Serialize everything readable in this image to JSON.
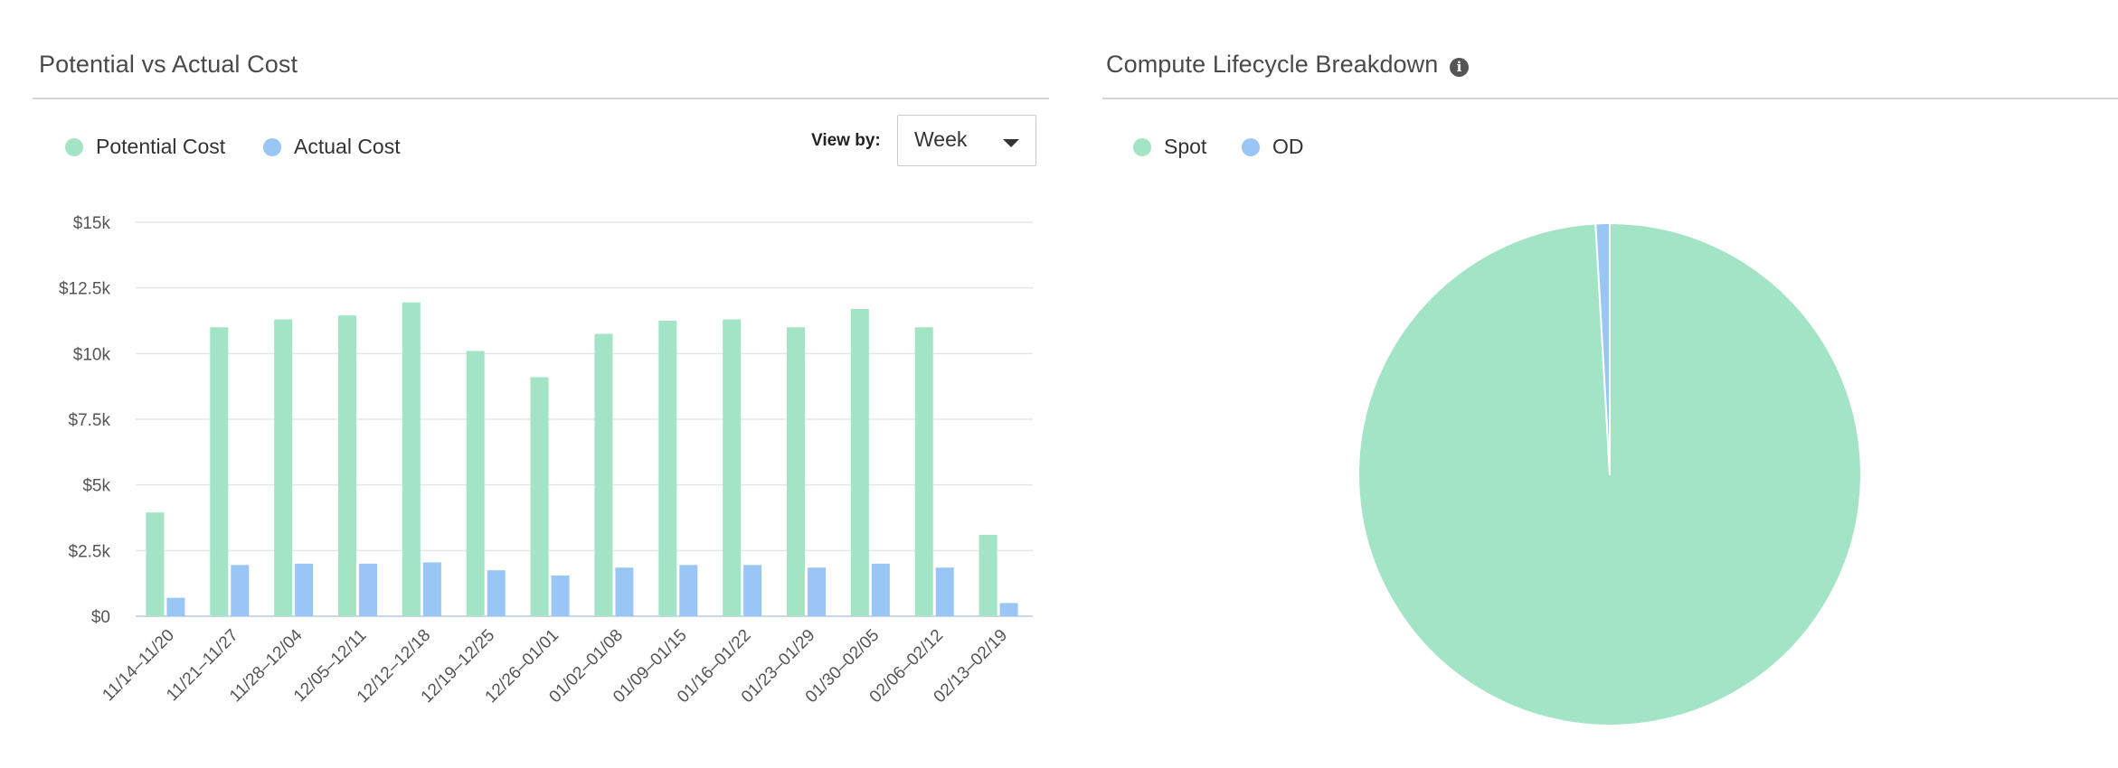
{
  "left_panel": {
    "title": "Potential vs Actual Cost",
    "view_by_label": "View by:",
    "view_by_value": "Week"
  },
  "right_panel": {
    "title": "Compute Lifecycle Breakdown",
    "info_icon": "info-icon"
  },
  "colors": {
    "potential": "#a3e4c6",
    "actual": "#9ac6f5",
    "spot": "#a3e4c6",
    "od": "#9ac6f5"
  },
  "chart_data": [
    {
      "type": "bar",
      "title": "Potential vs Actual Cost",
      "categories": [
        "11/14–11/20",
        "11/21–11/27",
        "11/28–12/04",
        "12/05–12/11",
        "12/12–12/18",
        "12/19–12/25",
        "12/26–01/01",
        "01/02–01/08",
        "01/09–01/15",
        "01/16–01/22",
        "01/23–01/29",
        "01/30–02/05",
        "02/06–02/12",
        "02/13–02/19"
      ],
      "series": [
        {
          "name": "Potential Cost",
          "values": [
            3950,
            11000,
            11300,
            11450,
            11950,
            10100,
            9100,
            10750,
            11250,
            11300,
            11000,
            11700,
            11000,
            3100
          ]
        },
        {
          "name": "Actual Cost",
          "values": [
            700,
            1950,
            2000,
            2000,
            2050,
            1750,
            1550,
            1850,
            1950,
            1950,
            1850,
            2000,
            1850,
            500
          ]
        }
      ],
      "ylim": [
        0,
        15000
      ],
      "yticks": [
        0,
        2500,
        5000,
        7500,
        10000,
        12500,
        15000
      ],
      "ytick_labels": [
        "$0",
        "$2.5k",
        "$5k",
        "$7.5k",
        "$10k",
        "$12.5k",
        "$15k"
      ],
      "grid": true,
      "legend": "top-left"
    },
    {
      "type": "pie",
      "title": "Compute Lifecycle Breakdown",
      "slices": [
        {
          "name": "Spot",
          "value": 99.1
        },
        {
          "name": "OD",
          "value": 0.9
        }
      ],
      "legend": "top-left"
    }
  ]
}
